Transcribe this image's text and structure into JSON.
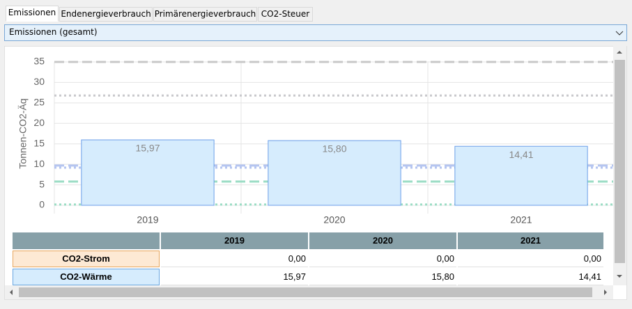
{
  "tabs": [
    "Emissionen",
    "Endenergieverbrauch",
    "Primärenergieverbrauch",
    "CO2-Steuer"
  ],
  "active_tab": 0,
  "dropdown": "Emissionen (gesamt)",
  "chart_data": {
    "type": "bar",
    "stacked": true,
    "y_label": "Tonnen-CO2-Äq",
    "categories": [
      "2019",
      "2020",
      "2021"
    ],
    "series": [
      {
        "name": "CO2-Strom",
        "color": "#fde9d4",
        "values": [
          0,
          0,
          0
        ]
      },
      {
        "name": "CO2-Wärme",
        "color": "#d6ecfd",
        "values": [
          15.97,
          15.8,
          14.41
        ],
        "value_labels": [
          "15,97",
          "15,80",
          "14,41"
        ]
      }
    ],
    "ylim": [
      0,
      35
    ],
    "yticks": [
      0,
      5,
      10,
      15,
      20,
      25,
      30,
      35
    ],
    "grid": true,
    "reference_lines": [
      {
        "value": 35,
        "color": "#c8c8c8",
        "dash": "dashed"
      },
      {
        "value": 26.8,
        "color": "#c8c8cc",
        "dash": "dotted"
      },
      {
        "value": 9.7,
        "color": "#b4c4f0",
        "dash": "dashed"
      },
      {
        "value": 9.2,
        "color": "#b4c4f0",
        "dash": "dotted"
      },
      {
        "value": 5.8,
        "color": "#9adcc4",
        "dash": "dashed"
      },
      {
        "value": 0.2,
        "color": "#9adcc4",
        "dash": "dotted"
      }
    ]
  },
  "table": {
    "columns": [
      "2019",
      "2020",
      "2021"
    ],
    "rows": [
      {
        "label": "CO2-Strom",
        "color": "#fde9d4",
        "border": "#e8a860",
        "cells": [
          "0,00",
          "0,00",
          "0,00"
        ]
      },
      {
        "label": "CO2-Wärme",
        "color": "#d6ecfd",
        "border": "#6aa6e0",
        "cells": [
          "15,97",
          "15,80",
          "14,41"
        ]
      }
    ]
  }
}
